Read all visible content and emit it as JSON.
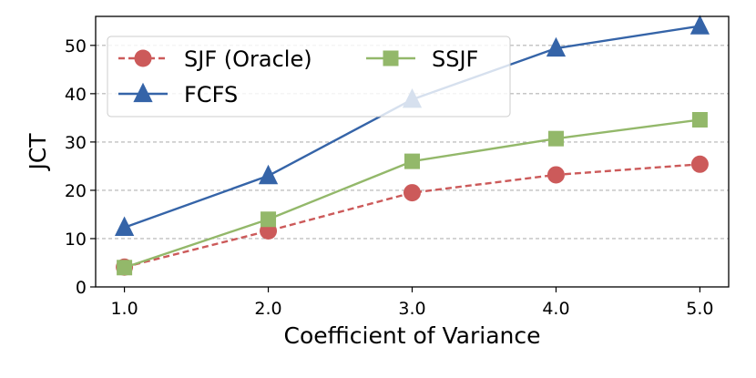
{
  "chart_data": {
    "type": "line",
    "title": "",
    "xlabel": "Coefficient of Variance",
    "ylabel": "JCT",
    "x": [
      1.0,
      2.0,
      3.0,
      4.0,
      5.0
    ],
    "x_tick_labels": [
      "1.0",
      "2.0",
      "3.0",
      "4.0",
      "5.0"
    ],
    "y_ticks": [
      0,
      10,
      20,
      30,
      40,
      50
    ],
    "y_tick_labels": [
      "0",
      "10",
      "20",
      "30",
      "40",
      "50"
    ],
    "xlim": [
      0.8,
      5.2
    ],
    "ylim": [
      0,
      56
    ],
    "grid": "horizontal dashed",
    "legend_position": "top-left",
    "series": [
      {
        "name": "SJF (Oracle)",
        "values": [
          4.1,
          11.6,
          19.5,
          23.2,
          25.4
        ],
        "color": "#cc5a5a",
        "marker": "circle",
        "line_style": "dashed"
      },
      {
        "name": "FCFS",
        "values": [
          12.3,
          23.0,
          38.8,
          49.4,
          54.0
        ],
        "color": "#3564a8",
        "marker": "triangle",
        "line_style": "solid"
      },
      {
        "name": "SSJF",
        "values": [
          4.0,
          14.0,
          26.0,
          30.7,
          34.6
        ],
        "color": "#93b86a",
        "marker": "square",
        "line_style": "solid"
      }
    ],
    "legend_order": [
      0,
      2,
      1
    ]
  }
}
